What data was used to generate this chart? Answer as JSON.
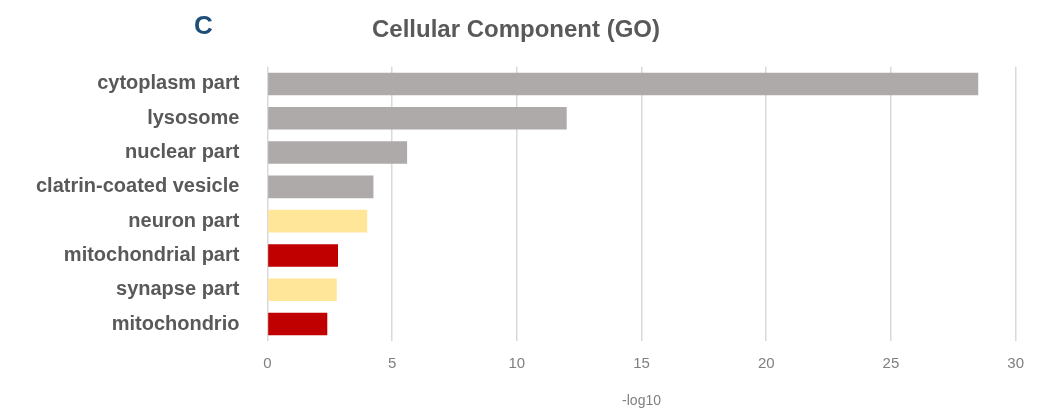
{
  "chart_data": {
    "type": "bar",
    "orientation": "horizontal",
    "title": "Cellular Component (GO)",
    "xlabel": "-log10",
    "annotations": [
      "C"
    ],
    "categories": [
      "cytoplasm part",
      "lysosome",
      "nuclear part",
      "clatrin-coated vesicle",
      "neuron part",
      "mitochondrial part",
      "synapse part",
      "mitochondrio"
    ],
    "values": [
      28.5,
      12.0,
      5.6,
      4.25,
      4.0,
      2.83,
      2.78,
      2.4
    ],
    "colors": [
      "#aeaaaa",
      "#aeaaaa",
      "#aeaaaa",
      "#aeaaaa",
      "#ffe699",
      "#c00000",
      "#ffe699",
      "#c00000"
    ],
    "xlim": [
      0,
      30
    ],
    "xticks": [
      0,
      5,
      10,
      15,
      20,
      25,
      30
    ],
    "grid": "x"
  }
}
